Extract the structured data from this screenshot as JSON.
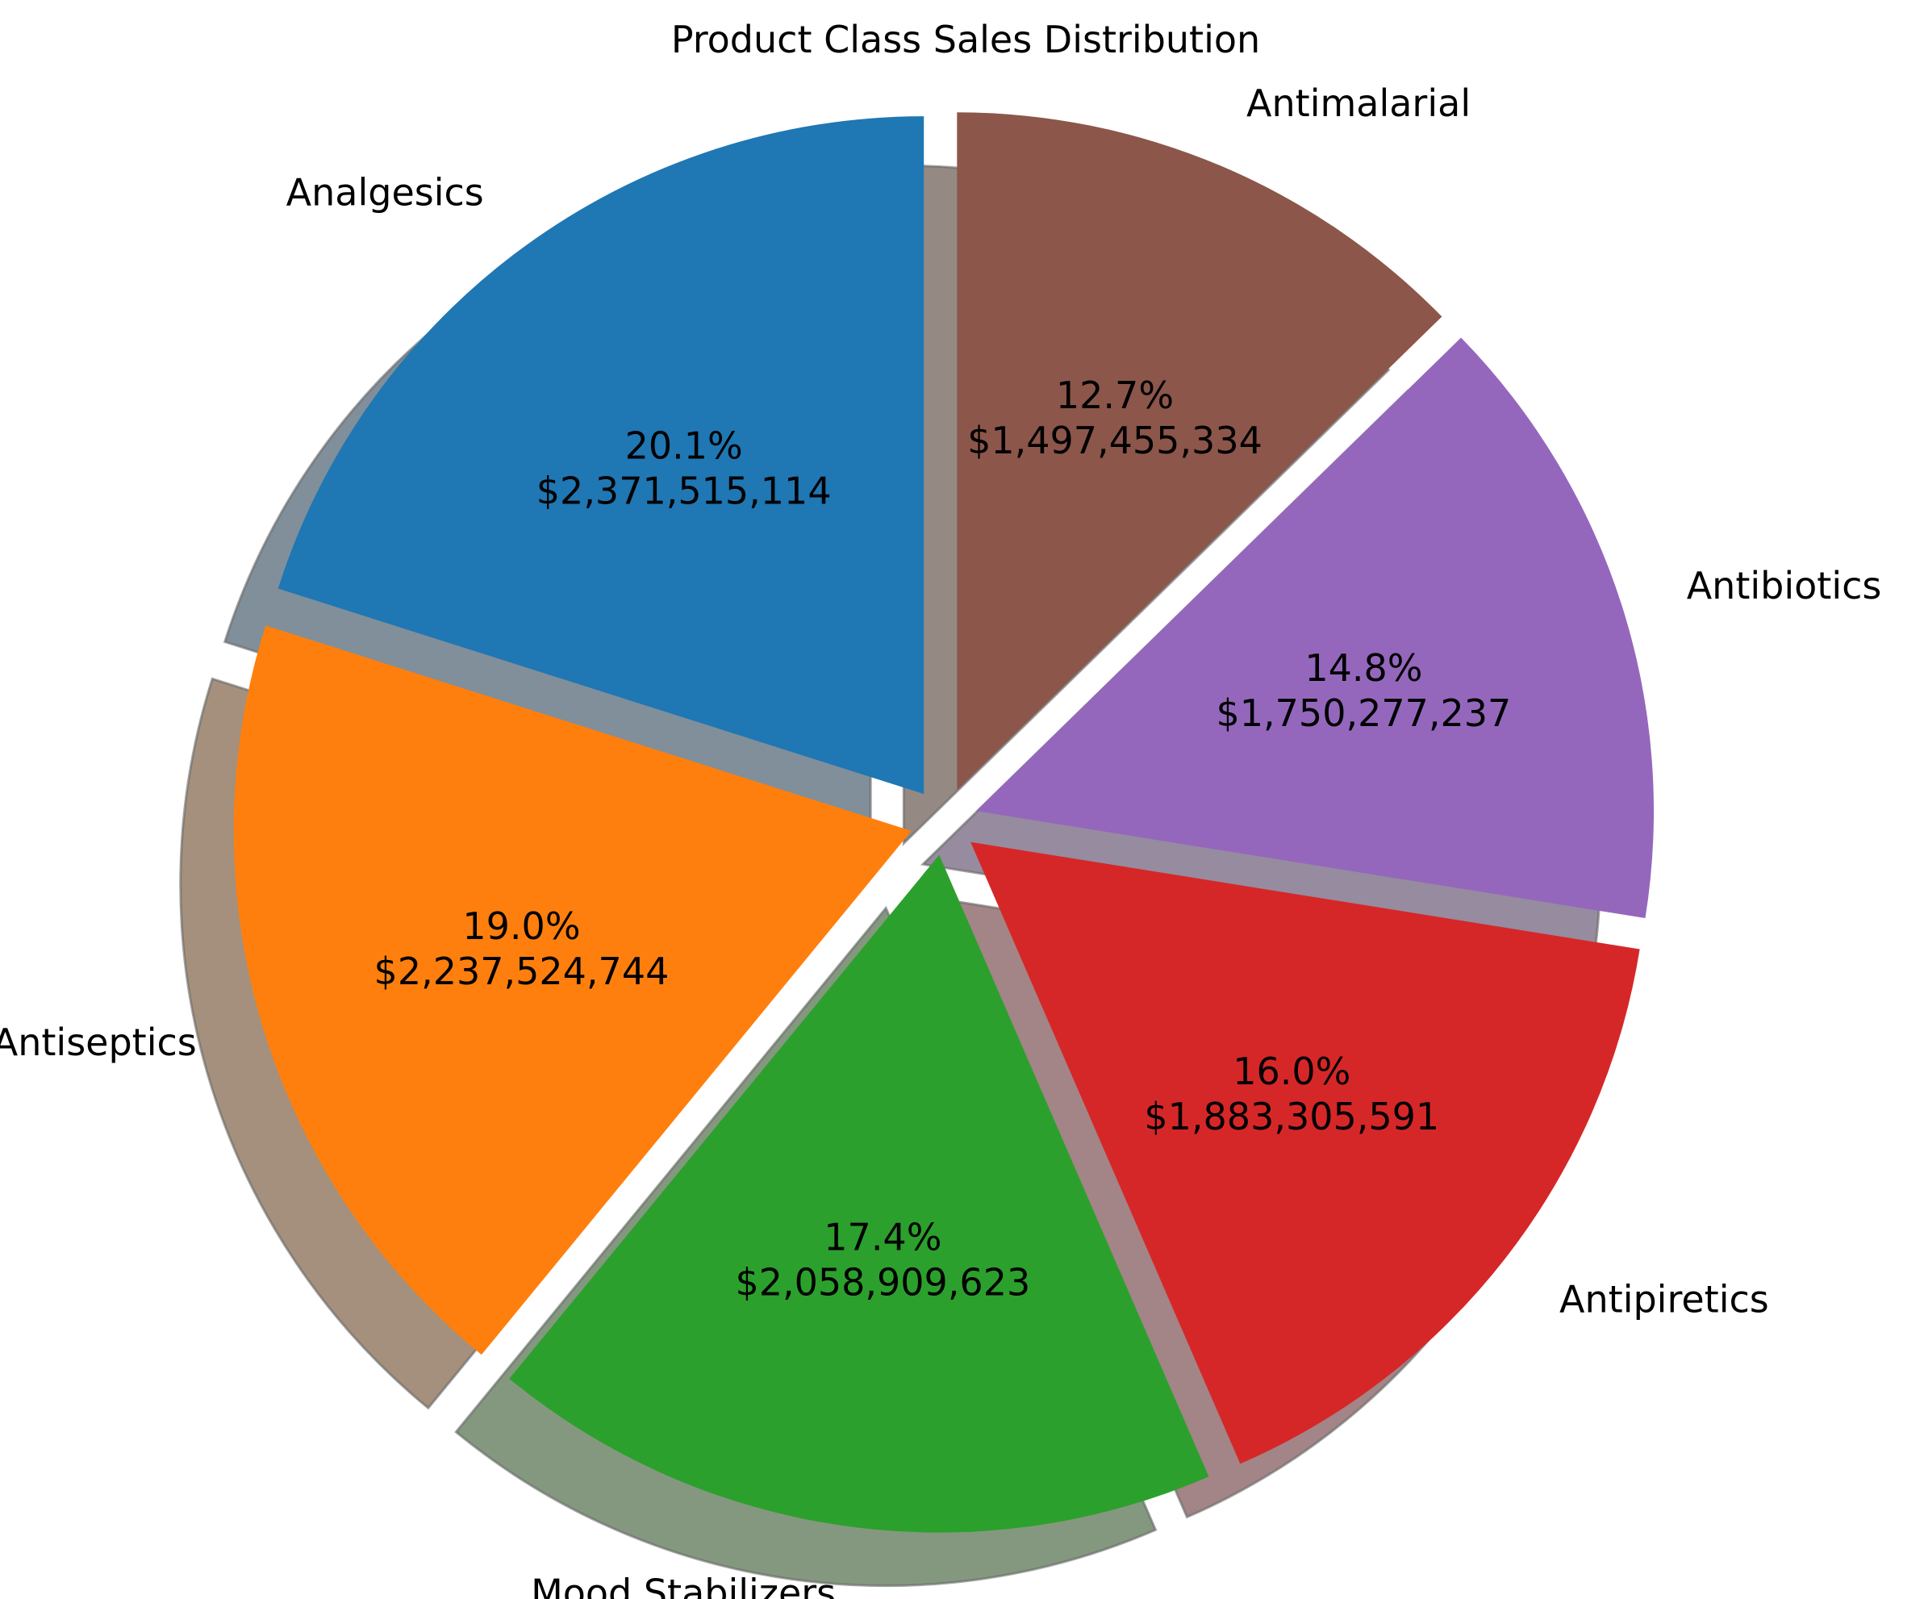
{
  "chart_data": {
    "type": "pie",
    "title": "Product Class Sales Distribution",
    "categories": [
      "Analgesics",
      "Antiseptics",
      "Mood Stabilizers",
      "Antipiretics",
      "Antibiotics",
      "Antimalarial"
    ],
    "values": [
      2371515114,
      2237524744,
      2058909623,
      1883305591,
      1750277237,
      1497455334
    ],
    "percent_labels": [
      "20.1%",
      "19.0%",
      "17.4%",
      "16.0%",
      "14.8%",
      "12.7%"
    ],
    "value_labels": [
      "$2,371,515,114",
      "$2,237,524,744",
      "$2,058,909,623",
      "$1,883,305,591",
      "$1,750,277,237",
      "$1,497,455,334"
    ],
    "colors": [
      "#1f77b4",
      "#ff7f0e",
      "#2ca02c",
      "#d62728",
      "#9467bd",
      "#8c564b"
    ],
    "start_angle_deg": 90,
    "direction": "counterclockwise",
    "exploded": true,
    "shadow": true
  }
}
